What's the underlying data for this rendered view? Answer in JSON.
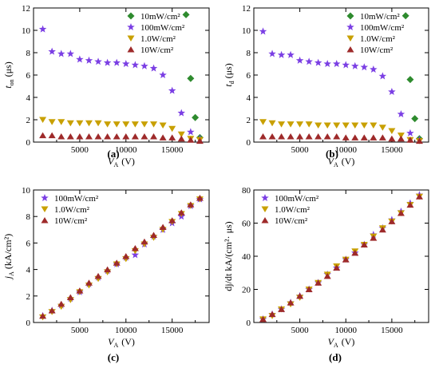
{
  "series_styles": [
    {
      "key": "10mW",
      "shape": "diamond",
      "color": "#2e8b2e"
    },
    {
      "key": "100mW",
      "shape": "star",
      "color": "#7b3fe4"
    },
    {
      "key": "1W",
      "shape": "tri-down",
      "color": "#c8a000"
    },
    {
      "key": "10W",
      "shape": "tri-up",
      "color": "#9e2a2a"
    }
  ],
  "chart_data": [
    {
      "type": "scatter",
      "panel": "(a)",
      "xlabel_sym": "V",
      "xlabel_sub": "A",
      "xlabel_unit": "(V)",
      "ylabel_sym": "t",
      "ylabel_sub": "on",
      "ylabel_unit": "(μs)",
      "xlim": [
        0,
        19000
      ],
      "ylim": [
        0,
        12
      ],
      "xticks": [
        5000,
        10000,
        15000
      ],
      "yticks": [
        0,
        2,
        4,
        6,
        8,
        10,
        12
      ],
      "legend_placement": "top-right",
      "series": [
        {
          "style": "10mW",
          "name": "10mW/cm²",
          "x": [
            16500,
            17000,
            17500,
            18000
          ],
          "y": [
            11.4,
            5.7,
            2.2,
            0.4
          ]
        },
        {
          "style": "100mW",
          "name": "100mW/cm²",
          "x": [
            1000,
            2000,
            3000,
            4000,
            5000,
            6000,
            7000,
            8000,
            9000,
            10000,
            11000,
            12000,
            13000,
            14000,
            15000,
            16000,
            17000,
            18000
          ],
          "y": [
            10.1,
            8.1,
            7.9,
            7.9,
            7.4,
            7.3,
            7.2,
            7.1,
            7.1,
            7.0,
            6.9,
            6.8,
            6.6,
            6.0,
            4.6,
            2.6,
            0.9,
            0.3
          ]
        },
        {
          "style": "1W",
          "name": "1.0W/cm²",
          "x": [
            1000,
            2000,
            3000,
            4000,
            5000,
            6000,
            7000,
            8000,
            9000,
            10000,
            11000,
            12000,
            13000,
            14000,
            15000,
            16000,
            17000,
            18000
          ],
          "y": [
            2.0,
            1.8,
            1.8,
            1.7,
            1.7,
            1.7,
            1.7,
            1.6,
            1.6,
            1.6,
            1.6,
            1.6,
            1.6,
            1.5,
            1.2,
            0.7,
            0.3,
            0.2
          ]
        },
        {
          "style": "10W",
          "name": "10W/cm²",
          "x": [
            1000,
            2000,
            3000,
            4000,
            5000,
            6000,
            7000,
            8000,
            9000,
            10000,
            11000,
            12000,
            13000,
            14000,
            15000,
            16000,
            17000,
            18000
          ],
          "y": [
            0.6,
            0.6,
            0.5,
            0.5,
            0.5,
            0.5,
            0.5,
            0.5,
            0.5,
            0.5,
            0.5,
            0.5,
            0.5,
            0.4,
            0.4,
            0.3,
            0.2,
            0.1
          ]
        }
      ]
    },
    {
      "type": "scatter",
      "panel": "(b)",
      "xlabel_sym": "V",
      "xlabel_sub": "A",
      "xlabel_unit": "(V)",
      "ylabel_sym": "t",
      "ylabel_sub": "d",
      "ylabel_unit": "(μs)",
      "xlim": [
        0,
        19000
      ],
      "ylim": [
        0,
        12
      ],
      "xticks": [
        5000,
        10000,
        15000
      ],
      "yticks": [
        0,
        2,
        4,
        6,
        8,
        10,
        12
      ],
      "legend_placement": "top-right",
      "series": [
        {
          "style": "10mW",
          "name": "10mW/cm²",
          "x": [
            16500,
            17000,
            17500,
            18000
          ],
          "y": [
            11.3,
            5.6,
            2.1,
            0.3
          ]
        },
        {
          "style": "100mW",
          "name": "100mW/cm²",
          "x": [
            1000,
            2000,
            3000,
            4000,
            5000,
            6000,
            7000,
            8000,
            9000,
            10000,
            11000,
            12000,
            13000,
            14000,
            15000,
            16000,
            17000,
            18000
          ],
          "y": [
            9.9,
            7.9,
            7.8,
            7.8,
            7.3,
            7.2,
            7.1,
            7.0,
            7.0,
            6.9,
            6.8,
            6.7,
            6.5,
            5.9,
            4.5,
            2.5,
            0.8,
            0.2
          ]
        },
        {
          "style": "1W",
          "name": "1.0W/cm²",
          "x": [
            1000,
            2000,
            3000,
            4000,
            5000,
            6000,
            7000,
            8000,
            9000,
            10000,
            11000,
            12000,
            13000,
            14000,
            15000,
            16000,
            17000,
            18000
          ],
          "y": [
            1.8,
            1.7,
            1.6,
            1.6,
            1.6,
            1.6,
            1.5,
            1.5,
            1.5,
            1.5,
            1.5,
            1.5,
            1.5,
            1.3,
            1.0,
            0.6,
            0.2,
            0.1
          ]
        },
        {
          "style": "10W",
          "name": "10W/cm²",
          "x": [
            1000,
            2000,
            3000,
            4000,
            5000,
            6000,
            7000,
            8000,
            9000,
            10000,
            11000,
            12000,
            13000,
            14000,
            15000,
            16000,
            17000,
            18000
          ],
          "y": [
            0.5,
            0.5,
            0.5,
            0.5,
            0.5,
            0.5,
            0.5,
            0.5,
            0.5,
            0.4,
            0.4,
            0.4,
            0.4,
            0.4,
            0.3,
            0.3,
            0.2,
            0.1
          ]
        }
      ]
    },
    {
      "type": "scatter",
      "panel": "(c)",
      "xlabel_sym": "V",
      "xlabel_sub": "A",
      "xlabel_unit": "(V)",
      "ylabel_sym": "j",
      "ylabel_sub": "A",
      "ylabel_unit": "(kA/cm²)",
      "xlim": [
        0,
        19000
      ],
      "ylim": [
        0,
        10
      ],
      "xticks": [
        5000,
        10000,
        15000
      ],
      "yticks": [
        0,
        2,
        4,
        6,
        8,
        10
      ],
      "legend_placement": "top-left",
      "series": [
        {
          "style": "100mW",
          "name": "100mW/cm²",
          "x": [
            1000,
            2000,
            3000,
            4000,
            5000,
            6000,
            7000,
            8000,
            9000,
            10000,
            11000,
            12000,
            13000,
            14000,
            15000,
            16000,
            17000,
            18000
          ],
          "y": [
            0.5,
            0.9,
            1.3,
            1.8,
            2.3,
            2.9,
            3.4,
            3.9,
            4.4,
            4.9,
            5.1,
            5.9,
            6.5,
            7.0,
            7.5,
            8.0,
            8.8,
            9.3
          ]
        },
        {
          "style": "1W",
          "name": "1.0W/cm²",
          "x": [
            1000,
            2000,
            3000,
            4000,
            5000,
            6000,
            7000,
            8000,
            9000,
            10000,
            11000,
            12000,
            13000,
            14000,
            15000,
            16000,
            17000,
            18000
          ],
          "y": [
            0.4,
            0.8,
            1.2,
            1.7,
            2.3,
            2.8,
            3.3,
            3.8,
            4.4,
            4.8,
            5.4,
            5.9,
            6.4,
            7.0,
            7.6,
            8.2,
            8.8,
            9.3
          ]
        },
        {
          "style": "10W",
          "name": "10W/cm²",
          "x": [
            1000,
            2000,
            3000,
            4000,
            5000,
            6000,
            7000,
            8000,
            9000,
            10000,
            11000,
            12000,
            13000,
            14000,
            15000,
            16000,
            17000,
            18000
          ],
          "y": [
            0.5,
            0.9,
            1.4,
            1.9,
            2.4,
            3.0,
            3.5,
            4.0,
            4.5,
            5.0,
            5.6,
            6.1,
            6.6,
            7.2,
            7.7,
            8.3,
            8.9,
            9.4
          ]
        }
      ]
    },
    {
      "type": "scatter",
      "panel": "(d)",
      "xlabel_sym": "V",
      "xlabel_sub": "A",
      "xlabel_unit": "(V)",
      "ylabel_text": "dj/dt kA/(cm²· μs)",
      "xlim": [
        0,
        19000
      ],
      "ylim": [
        0,
        80
      ],
      "xticks": [
        5000,
        10000,
        15000
      ],
      "yticks": [
        0,
        20,
        40,
        60,
        80
      ],
      "legend_placement": "top-left",
      "series": [
        {
          "style": "100mW",
          "name": "100mW/cm²",
          "x": [
            1000,
            2000,
            3000,
            4000,
            5000,
            6000,
            7000,
            8000,
            9000,
            10000,
            11000,
            12000,
            13000,
            14000,
            15000,
            16000,
            17000,
            18000
          ],
          "y": [
            2,
            5,
            8,
            12,
            16,
            20,
            24,
            29,
            33,
            38,
            42,
            47,
            53,
            57,
            62,
            67,
            72,
            77
          ]
        },
        {
          "style": "1W",
          "name": "1.0W/cm²",
          "x": [
            1000,
            2000,
            3000,
            4000,
            5000,
            6000,
            7000,
            8000,
            9000,
            10000,
            11000,
            12000,
            13000,
            14000,
            15000,
            16000,
            17000,
            18000
          ],
          "y": [
            2,
            4,
            8,
            11,
            15,
            20,
            24,
            29,
            34,
            38,
            43,
            47,
            52,
            57,
            61,
            66,
            71,
            76
          ]
        },
        {
          "style": "10W",
          "name": "10W/cm²",
          "x": [
            1000,
            2000,
            3000,
            4000,
            5000,
            6000,
            7000,
            8000,
            9000,
            10000,
            11000,
            12000,
            13000,
            14000,
            15000,
            16000,
            17000,
            18000
          ],
          "y": [
            2,
            5,
            8,
            12,
            16,
            20,
            24,
            28,
            33,
            38,
            42,
            47,
            51,
            56,
            61,
            66,
            71,
            76
          ]
        }
      ]
    }
  ]
}
